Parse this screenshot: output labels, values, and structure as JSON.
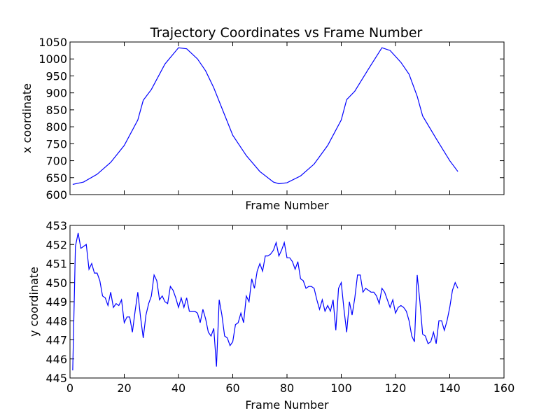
{
  "chart_data": {
    "title": "Trajectory Coordinates vs Frame Number",
    "subplots": [
      {
        "type": "line",
        "xlabel": "Frame Number",
        "ylabel": "x coordinate",
        "xlim": [
          0,
          160
        ],
        "ylim": [
          600,
          1050
        ],
        "xticks_visible": false,
        "yticks": [
          "600",
          "650",
          "700",
          "750",
          "800",
          "850",
          "900",
          "950",
          "1000",
          "1050"
        ],
        "color": "#0000ff",
        "x": [
          1,
          5,
          10,
          15,
          20,
          25,
          27,
          30,
          35,
          40,
          43,
          47,
          50,
          53,
          56,
          60,
          65,
          70,
          75,
          77,
          80,
          85,
          90,
          95,
          100,
          102,
          105,
          110,
          115,
          118,
          122,
          125,
          128,
          130,
          135,
          140,
          143
        ],
        "y": [
          630,
          637,
          660,
          695,
          745,
          820,
          878,
          910,
          985,
          1033,
          1030,
          1000,
          965,
          915,
          855,
          775,
          715,
          668,
          637,
          632,
          635,
          655,
          690,
          745,
          820,
          880,
          905,
          970,
          1033,
          1025,
          990,
          955,
          890,
          832,
          765,
          700,
          668
        ]
      },
      {
        "type": "line",
        "xlabel": "Frame Number",
        "ylabel": "y coordinate",
        "xlim": [
          0,
          160
        ],
        "ylim": [
          445,
          453
        ],
        "xticks": [
          "0",
          "20",
          "40",
          "60",
          "80",
          "100",
          "120",
          "140",
          "160"
        ],
        "yticks": [
          "445",
          "446",
          "447",
          "448",
          "449",
          "450",
          "451",
          "452",
          "453"
        ],
        "color": "#0000ff",
        "x": [
          1,
          2,
          3,
          4,
          5,
          6,
          7,
          8,
          9,
          10,
          11,
          12,
          13,
          14,
          15,
          16,
          17,
          18,
          19,
          20,
          21,
          22,
          23,
          24,
          25,
          26,
          27,
          28,
          29,
          30,
          31,
          32,
          33,
          34,
          35,
          36,
          37,
          38,
          39,
          40,
          41,
          42,
          43,
          44,
          45,
          46,
          47,
          48,
          49,
          50,
          51,
          52,
          53,
          54,
          55,
          56,
          57,
          58,
          59,
          60,
          61,
          62,
          63,
          64,
          65,
          66,
          67,
          68,
          69,
          70,
          71,
          72,
          73,
          74,
          75,
          76,
          77,
          78,
          79,
          80,
          81,
          82,
          83,
          84,
          85,
          86,
          87,
          88,
          89,
          90,
          91,
          92,
          93,
          94,
          95,
          96,
          97,
          98,
          99,
          100,
          101,
          102,
          103,
          104,
          105,
          106,
          107,
          108,
          109,
          110,
          111,
          112,
          113,
          114,
          115,
          116,
          117,
          118,
          119,
          120,
          121,
          122,
          123,
          124,
          125,
          126,
          127,
          128,
          129,
          130,
          131,
          132,
          133,
          134,
          135,
          136,
          137,
          138,
          139,
          140,
          141,
          142,
          143
        ],
        "y": [
          445.4,
          451.9,
          452.6,
          451.8,
          451.9,
          452.0,
          450.7,
          451.0,
          450.5,
          450.5,
          450.1,
          449.3,
          449.2,
          448.8,
          449.5,
          448.7,
          448.9,
          448.8,
          449.1,
          447.9,
          448.2,
          448.2,
          447.4,
          448.5,
          449.5,
          448.2,
          447.1,
          448.3,
          448.9,
          449.3,
          450.4,
          450.1,
          449.1,
          449.3,
          449.0,
          448.9,
          449.8,
          449.6,
          449.2,
          448.7,
          449.2,
          448.7,
          449.2,
          448.5,
          448.5,
          448.5,
          448.4,
          447.9,
          448.6,
          448.1,
          447.4,
          447.2,
          447.6,
          445.6,
          449.1,
          448.3,
          447.2,
          447.1,
          446.7,
          446.9,
          447.8,
          447.9,
          448.4,
          447.9,
          449.3,
          449.0,
          450.2,
          449.7,
          450.6,
          451.0,
          450.6,
          451.4,
          451.4,
          451.5,
          451.7,
          452.1,
          451.4,
          451.7,
          452.1,
          451.3,
          451.3,
          451.1,
          450.7,
          451.1,
          450.2,
          450.1,
          449.7,
          449.8,
          449.8,
          449.7,
          449.1,
          448.6,
          449.1,
          448.5,
          448.8,
          448.5,
          449.1,
          447.5,
          449.7,
          450.0,
          448.6,
          447.4,
          449.0,
          448.3,
          449.2,
          450.4,
          450.4,
          449.5,
          449.7,
          449.6,
          449.5,
          449.5,
          449.3,
          448.9,
          449.7,
          449.5,
          449.1,
          448.7,
          449.1,
          448.4,
          448.7,
          448.8,
          448.7,
          448.5,
          448.0,
          447.2,
          446.9,
          450.4,
          449.0,
          447.3,
          447.2,
          446.8,
          446.9,
          447.4,
          446.8,
          448.0,
          448.0,
          447.5,
          448.0,
          448.7,
          449.6,
          450.0,
          449.7
        ]
      }
    ]
  }
}
